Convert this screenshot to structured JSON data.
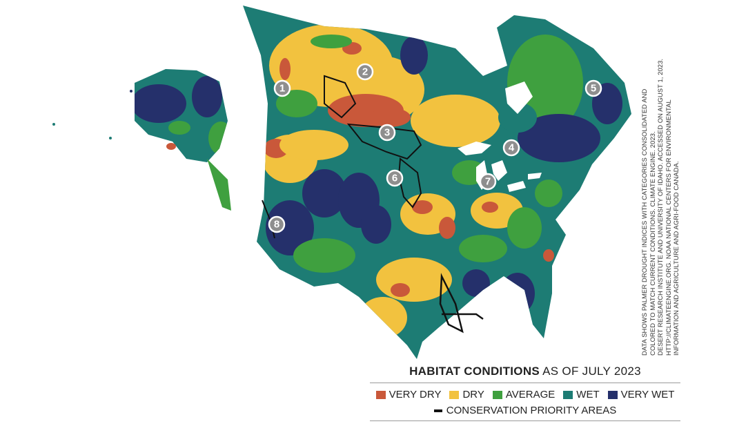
{
  "legend": {
    "title_bold": "HABITAT CONDITIONS",
    "title_rest": " AS OF JULY 2023",
    "categories": [
      {
        "label": "VERY DRY",
        "color": "#c9583a"
      },
      {
        "label": "DRY",
        "color": "#f2c23f"
      },
      {
        "label": "AVERAGE",
        "color": "#3fa03f"
      },
      {
        "label": "WET",
        "color": "#1d7c74"
      },
      {
        "label": "VERY WET",
        "color": "#25306b"
      }
    ],
    "priority_label": "CONSERVATION PRIORITY AREAS"
  },
  "markers": [
    "1",
    "2",
    "3",
    "4",
    "5",
    "6",
    "7",
    "8"
  ],
  "credit": [
    "DATA SHOWS PALMER DROUGHT INDICES WITH CATEGORIES CONSOLIDATED AND",
    "COLORED TO MATCH CURRENT CONDITIONS. CLIMATE ENGINE. 2023.",
    "DESERT RESEARCH INSTITUTE AND UNIVERSITY OF IDAHO. ACCESSED ON AUGUST 1, 2023.",
    "HTTP://CLIMATEENGINE.ORG. NOAA NATIONAL CENTERS FOR ENVIRONMENTAL",
    "INFORMATION AND AGRICULTURE AND AGRI-FOOD CANADA."
  ]
}
